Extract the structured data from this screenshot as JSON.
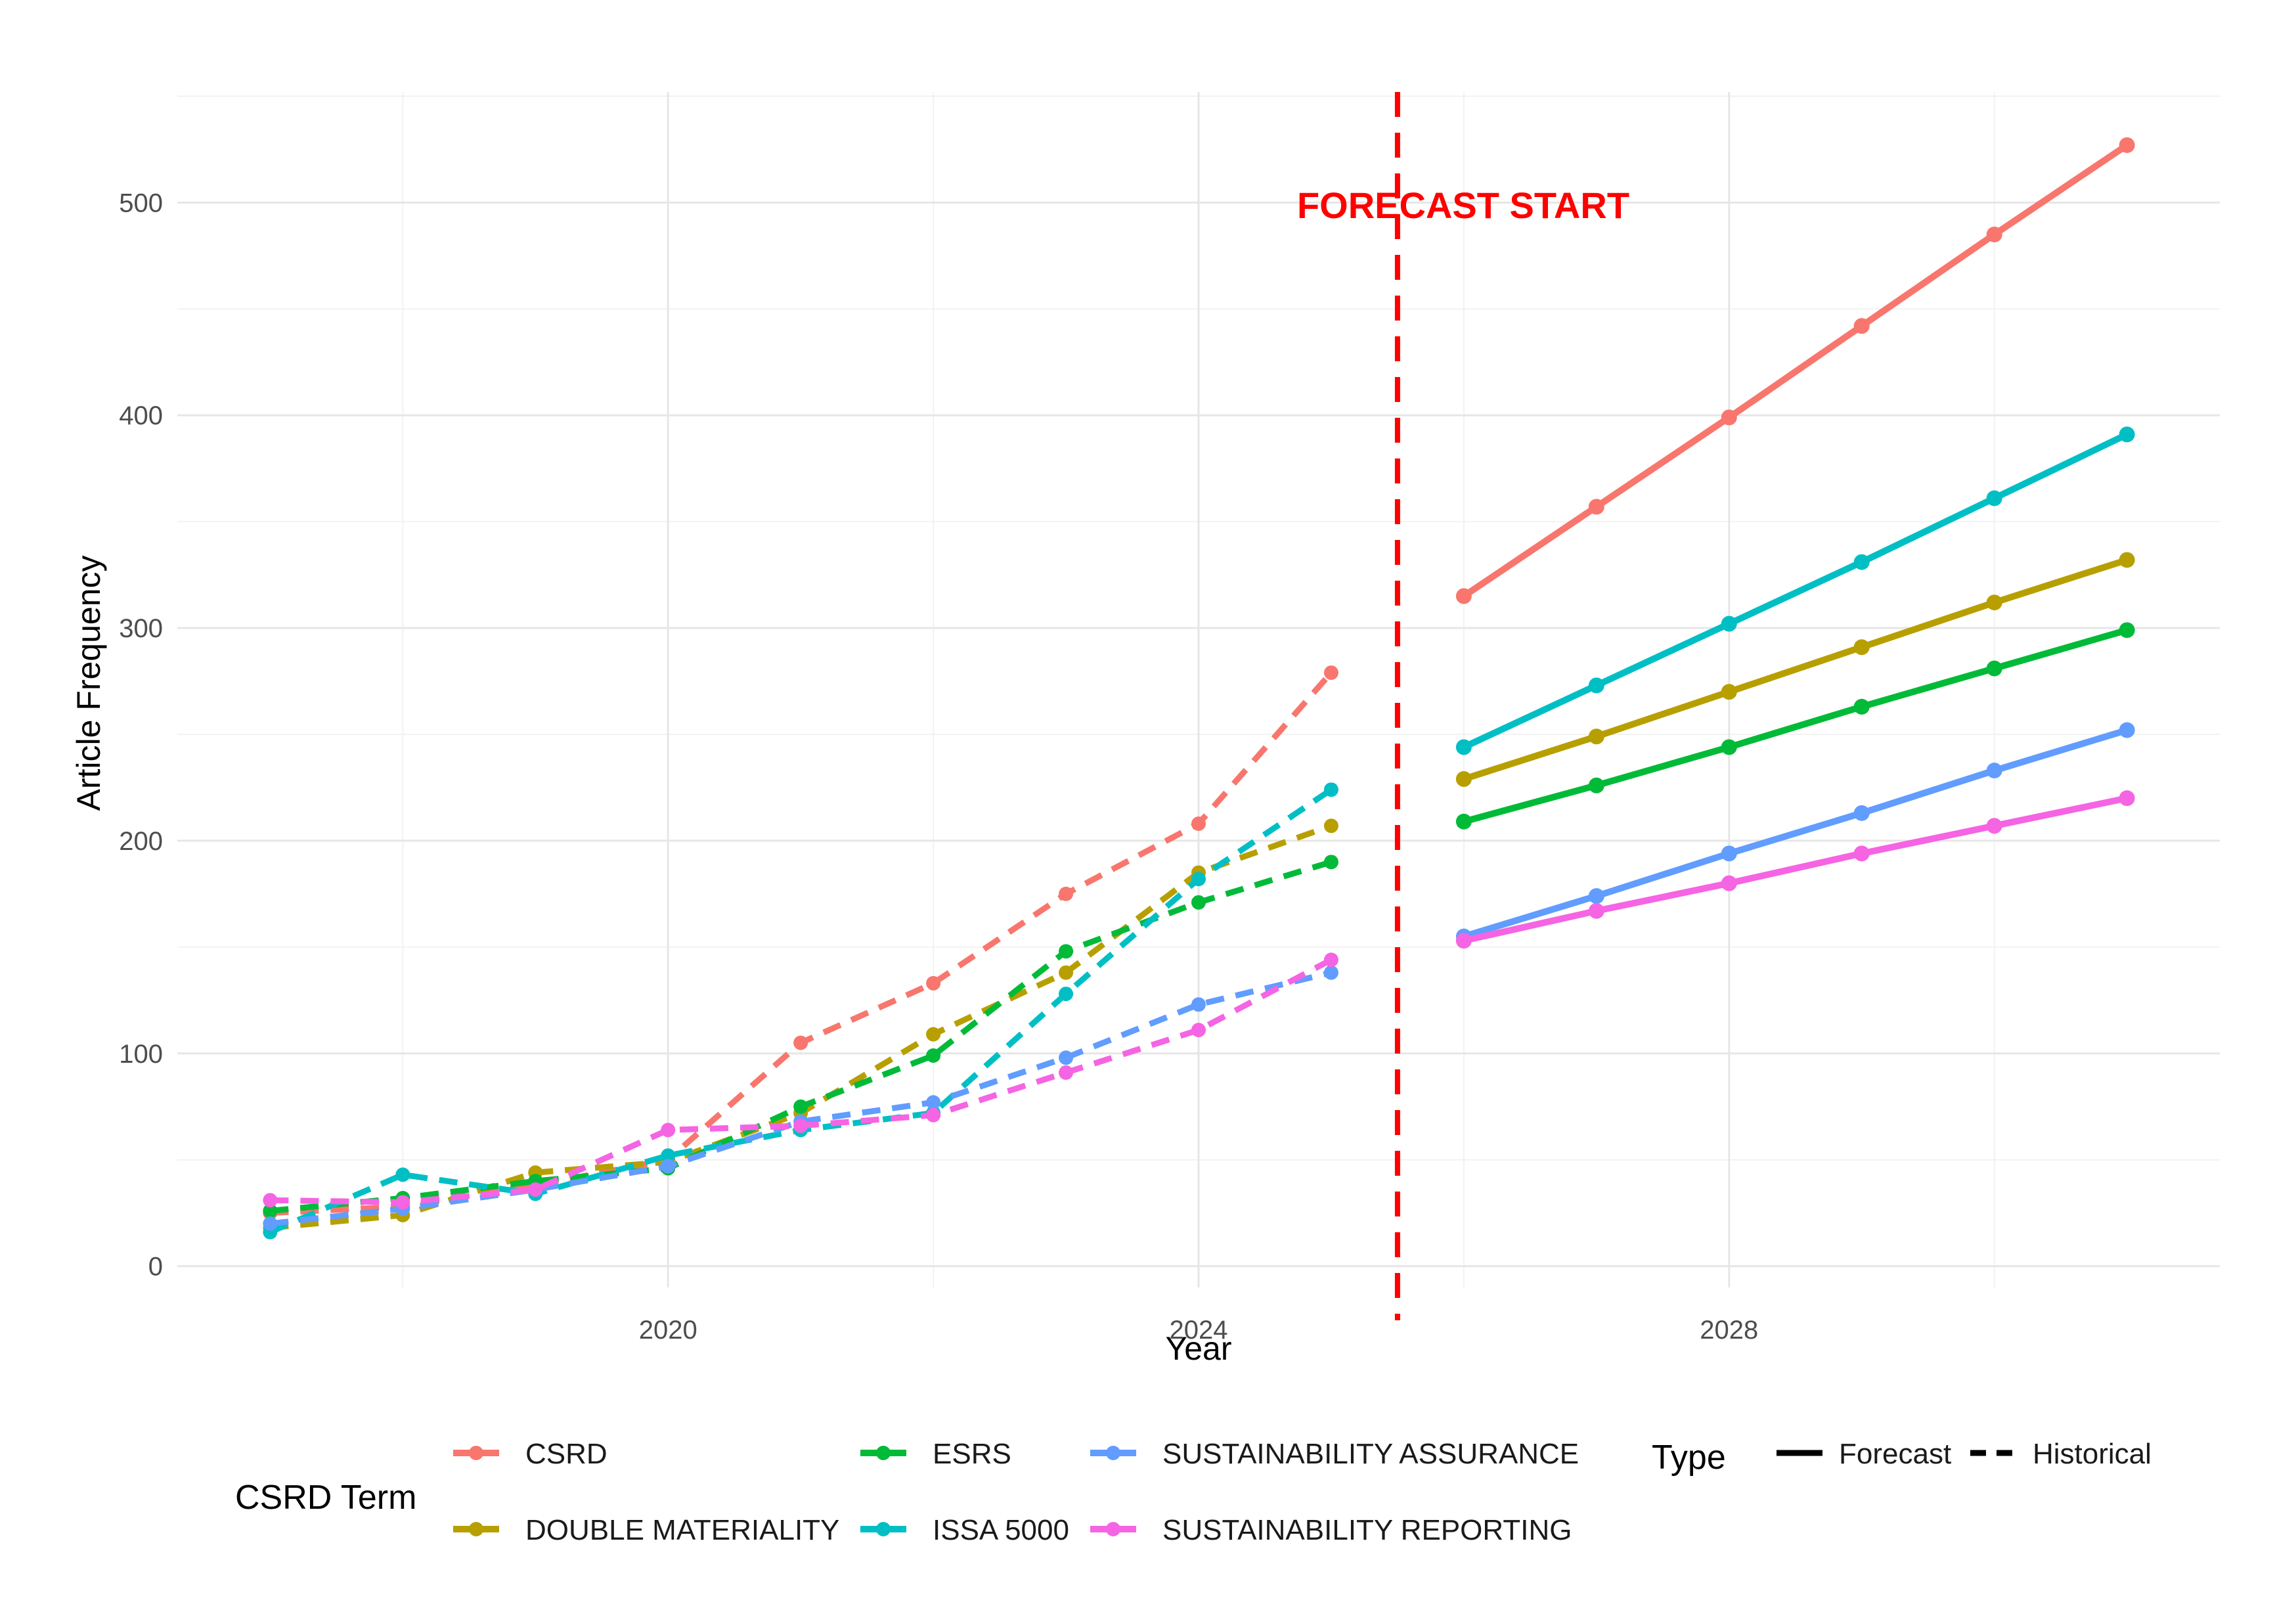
{
  "chart_data": {
    "type": "line",
    "title": "",
    "xlabel": "Year",
    "ylabel": "Article Frequency",
    "xlim": [
      2016.3,
      2031.7
    ],
    "ylim": [
      -10,
      552
    ],
    "x_ticks": [
      2020,
      2024,
      2028
    ],
    "y_ticks": [
      0,
      100,
      200,
      300,
      400,
      500
    ],
    "grid": true,
    "forecast_start_x": 2025.5,
    "annotation": "FORECAST START",
    "legend": {
      "placement": "bottom",
      "term_title": "CSRD Term",
      "type_title": "Type",
      "type_entries": [
        "Forecast",
        "Historical"
      ]
    },
    "series": [
      {
        "name": "CSRD",
        "color": "#F8766D",
        "historical": {
          "x": [
            2017,
            2018,
            2019,
            2020,
            2021,
            2022,
            2023,
            2024,
            2025
          ],
          "y": [
            25,
            28,
            38,
            50,
            105,
            133,
            175,
            208,
            279
          ]
        },
        "forecast": {
          "x": [
            2026,
            2027,
            2028,
            2029,
            2030,
            2031
          ],
          "y": [
            315,
            357,
            399,
            442,
            485,
            527
          ]
        }
      },
      {
        "name": "DOUBLE MATERIALITY",
        "color": "#B79F00",
        "historical": {
          "x": [
            2017,
            2018,
            2019,
            2020,
            2021,
            2022,
            2023,
            2024,
            2025
          ],
          "y": [
            18,
            24,
            44,
            49,
            72,
            109,
            138,
            185,
            207
          ]
        },
        "forecast": {
          "x": [
            2026,
            2027,
            2028,
            2029,
            2030,
            2031
          ],
          "y": [
            229,
            249,
            270,
            291,
            312,
            332
          ]
        }
      },
      {
        "name": "ESRS",
        "color": "#00BA38",
        "historical": {
          "x": [
            2017,
            2018,
            2019,
            2020,
            2021,
            2022,
            2023,
            2024,
            2025
          ],
          "y": [
            26,
            32,
            40,
            46,
            75,
            99,
            148,
            171,
            190
          ]
        },
        "forecast": {
          "x": [
            2026,
            2027,
            2028,
            2029,
            2030,
            2031
          ],
          "y": [
            209,
            226,
            244,
            263,
            281,
            299
          ]
        }
      },
      {
        "name": "ISSA 5000",
        "color": "#00BFC4",
        "historical": {
          "x": [
            2017,
            2018,
            2019,
            2020,
            2021,
            2022,
            2023,
            2024,
            2025
          ],
          "y": [
            16,
            43,
            34,
            52,
            64,
            72,
            128,
            182,
            224
          ]
        },
        "forecast": {
          "x": [
            2026,
            2027,
            2028,
            2029,
            2030,
            2031
          ],
          "y": [
            244,
            273,
            302,
            331,
            361,
            391
          ]
        }
      },
      {
        "name": "SUSTAINABILITY ASSURANCE",
        "color": "#619CFF",
        "historical": {
          "x": [
            2017,
            2018,
            2019,
            2020,
            2021,
            2022,
            2023,
            2024,
            2025
          ],
          "y": [
            20,
            27,
            36,
            47,
            68,
            77,
            98,
            123,
            138
          ]
        },
        "forecast": {
          "x": [
            2026,
            2027,
            2028,
            2029,
            2030,
            2031
          ],
          "y": [
            155,
            174,
            194,
            213,
            233,
            252
          ]
        }
      },
      {
        "name": "SUSTAINABILITY REPORTING",
        "color": "#F564E3",
        "historical": {
          "x": [
            2017,
            2018,
            2019,
            2020,
            2021,
            2022,
            2023,
            2024,
            2025
          ],
          "y": [
            31,
            30,
            36,
            64,
            66,
            71,
            91,
            111,
            144
          ]
        },
        "forecast": {
          "x": [
            2026,
            2027,
            2028,
            2029,
            2030,
            2031
          ],
          "y": [
            153,
            167,
            180,
            194,
            207,
            220
          ]
        }
      }
    ]
  }
}
